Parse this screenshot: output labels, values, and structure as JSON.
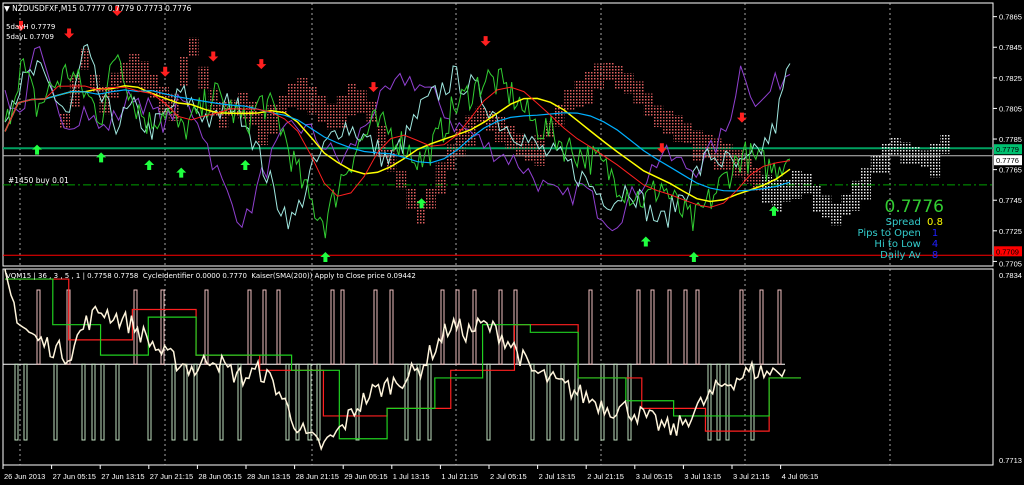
{
  "header": {
    "symbol_line": "NZDUSDFXF,M15  0.7777 0.7779 0.7773 0.7776",
    "fiveday_high": "5dayH 0.7779",
    "fiveday_low": "5dayL 0.7709",
    "order_label": "#1450 buy 0.01"
  },
  "info_panel": {
    "price": "0.7776",
    "rows": [
      {
        "label": "Spread",
        "value": "0.8",
        "color": "#ffff00"
      },
      {
        "label": "Pips to Open",
        "value": "1",
        "color": "#2020ff"
      },
      {
        "label": "Hi to Low",
        "value": "4",
        "color": "#2020ff"
      },
      {
        "label": "Daily Av",
        "value": "8",
        "color": "#2020ff"
      }
    ]
  },
  "price_tags": {
    "bid": "0.7779",
    "ask": "0.7776",
    "low": "0.7709"
  },
  "sub_header": "VQM15 | 36 , 3 , 5 , 1 | 0.7758 0.7758  CycleIdentifier 0.0000 0.7770  Kaiser(SMA(200)) Apply to Close price 0.09442",
  "chart_data": [
    {
      "type": "line",
      "title": "NZDUSDFXF,M15",
      "y_ticks": [
        "0.7865",
        "0.7845",
        "0.7825",
        "0.7805",
        "0.7785",
        "0.7765",
        "0.7745",
        "0.7725",
        "0.7705"
      ],
      "ylim": [
        0.7702,
        0.787
      ],
      "x_ticks": [
        "26 Jun 2013",
        "27 Jun 05:15",
        "27 Jun 13:15",
        "27 Jun 21:15",
        "28 Jun 05:15",
        "28 Jun 13:15",
        "28 Jun 21:15",
        "29 Jun 05:15",
        "1 Jul 13:15",
        "1 Jul 21:15",
        "2 Jul 05:15",
        "2 Jul 13:15",
        "2 Jul 21:15",
        "3 Jul 05:15",
        "3 Jul 13:15",
        "3 Jul 21:15",
        "4 Jul 05:15"
      ],
      "grid": true,
      "series": [
        {
          "values": [
            0.779,
            0.7835,
            0.7805,
            0.782,
            0.783,
            0.7815,
            0.78,
            0.7845,
            0.781,
            0.7795,
            0.7805,
            0.779,
            0.78,
            0.7815,
            0.7805,
            0.7795,
            0.781,
            0.78,
            0.777,
            0.7745,
            0.773,
            0.776,
            0.778,
            0.7795,
            0.779,
            0.778,
            0.777,
            0.7785,
            0.7805,
            0.7815,
            0.7825,
            0.782,
            0.781,
            0.7795,
            0.779,
            0.778,
            0.7775,
            0.777,
            0.776,
            0.775,
            0.7745,
            0.7755,
            0.774,
            0.773,
            0.7745,
            0.776,
            0.7775,
            0.777,
            0.7765,
            0.7776
          ],
          "color": "#32cd32"
        }
      ],
      "levels": [
        {
          "value": 0.7779,
          "color": "#00a060"
        },
        {
          "value": 0.7776,
          "color": "#c0c0c0"
        },
        {
          "value": 0.7709,
          "color": "#ff0000"
        },
        {
          "value": 0.7755,
          "color": "#00a000"
        }
      ]
    },
    {
      "type": "line",
      "y_ticks": [
        "0.7834",
        "0.7713"
      ],
      "ylim": [
        0.7713,
        0.7834
      ],
      "series": [
        {
          "values": [
            0.783,
            0.78,
            0.779,
            0.7785,
            0.778,
            0.78,
            0.781,
            0.7805,
            0.78,
            0.779,
            0.778,
            0.7775,
            0.777,
            0.778,
            0.777,
            0.7765,
            0.777,
            0.776,
            0.774,
            0.7725,
            0.772,
            0.773,
            0.7745,
            0.7755,
            0.776,
            0.7765,
            0.777,
            0.7785,
            0.78,
            0.7795,
            0.78,
            0.7795,
            0.7785,
            0.777,
            0.7765,
            0.776,
            0.7755,
            0.775,
            0.7745,
            0.7745,
            0.774,
            0.7735,
            0.773,
            0.774,
            0.775,
            0.776,
            0.7765,
            0.777,
            0.7768,
            0.7772
          ],
          "color": "#fff5dc"
        }
      ]
    }
  ]
}
